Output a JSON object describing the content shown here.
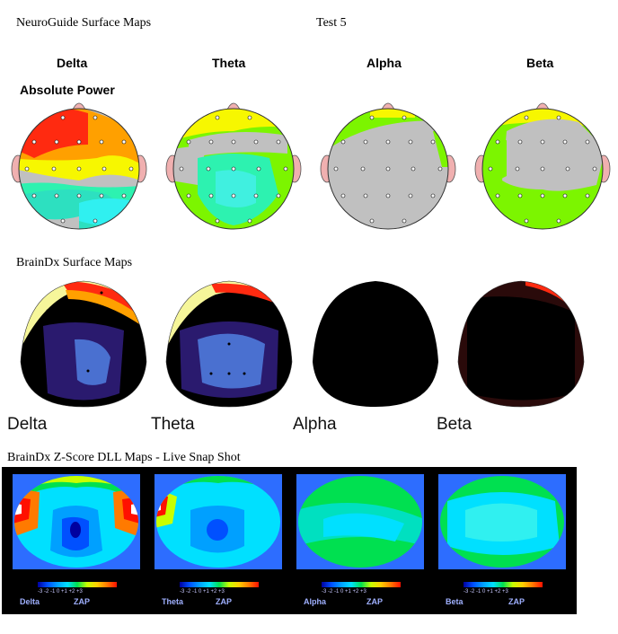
{
  "header": {
    "left_title": "NeuroGuide Surface Maps",
    "right_title": "Test 5"
  },
  "neuroguide": {
    "bands": [
      "Delta",
      "Theta",
      "Alpha",
      "Beta"
    ],
    "metric_label": "Absolute Power"
  },
  "braindx": {
    "section_title": "BrainDx Surface Maps",
    "bands": [
      "Delta",
      "Theta",
      "Alpha",
      "Beta"
    ]
  },
  "zscore": {
    "section_title": "BrainDx Z-Score DLL Maps - Live Snap Shot",
    "bands": [
      "Delta",
      "Theta",
      "Alpha",
      "Beta"
    ],
    "mode_label": "ZAP",
    "scale_ticks": "-3 -2 -1 0 +1 +2 +3"
  },
  "colors": {
    "ng_red": "#ff2a10",
    "ng_yellow": "#f7f700",
    "ng_green": "#7cf500",
    "ng_teal": "#2df2b0",
    "ng_gray": "#c0c0c0",
    "ear": "#f0b0b0",
    "bdx_black": "#000000",
    "bdx_purple": "#2a1a6e",
    "bdx_blue": "#4a70d0",
    "zmap_frame": "#2d6dff"
  }
}
